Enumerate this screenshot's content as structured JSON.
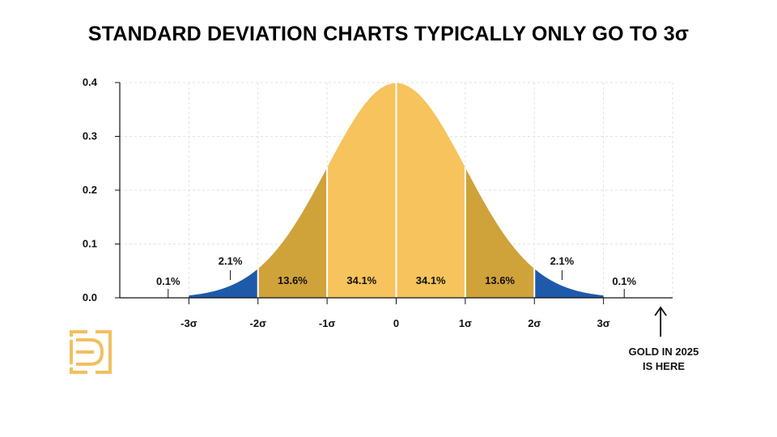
{
  "title": "STANDARD DEVIATION CHARTS TYPICALLY ONLY GO TO 3σ",
  "colors": {
    "center": "#F6C35C",
    "middle": "#CFA23A",
    "tail": "#1F5AAA",
    "grid": "#e2e2e2",
    "axis": "#111111",
    "logo": "#F0C060"
  },
  "chart_data": {
    "type": "area",
    "title": "STANDARD DEVIATION CHARTS TYPICALLY ONLY GO TO 3σ",
    "curve": "normal-distribution-pdf",
    "xlim": [
      -4,
      4
    ],
    "ylim": [
      0,
      0.4
    ],
    "x_ticks": [
      -3,
      -2,
      -1,
      0,
      1,
      2,
      3
    ],
    "x_tick_labels": [
      "-3σ",
      "-2σ",
      "-1σ",
      "0",
      "1σ",
      "2σ",
      "3σ"
    ],
    "y_ticks": [
      0.0,
      0.1,
      0.2,
      0.3,
      0.4
    ],
    "y_tick_labels": [
      "0.0",
      "0.1",
      "0.2",
      "0.3",
      "0.4"
    ],
    "grid": true,
    "regions": [
      {
        "from": -3,
        "to": -2,
        "label": "2.1%",
        "color": "tail",
        "placement": "above-with-leader"
      },
      {
        "from": -2,
        "to": -1,
        "label": "13.6%",
        "color": "middle",
        "placement": "inside"
      },
      {
        "from": -1,
        "to": 0,
        "label": "34.1%",
        "color": "center",
        "placement": "inside"
      },
      {
        "from": 0,
        "to": 1,
        "label": "34.1%",
        "color": "center",
        "placement": "inside"
      },
      {
        "from": 1,
        "to": 2,
        "label": "13.6%",
        "color": "middle",
        "placement": "inside"
      },
      {
        "from": 2,
        "to": 3,
        "label": "2.1%",
        "color": "tail",
        "placement": "above-with-leader"
      }
    ],
    "outer_labels": [
      {
        "x": -3.3,
        "label": "0.1%"
      },
      {
        "x": 3.3,
        "label": "0.1%"
      }
    ],
    "annotation": {
      "line1": "GOLD IN 2025",
      "line2": "IS HERE",
      "x": 3.85
    }
  }
}
